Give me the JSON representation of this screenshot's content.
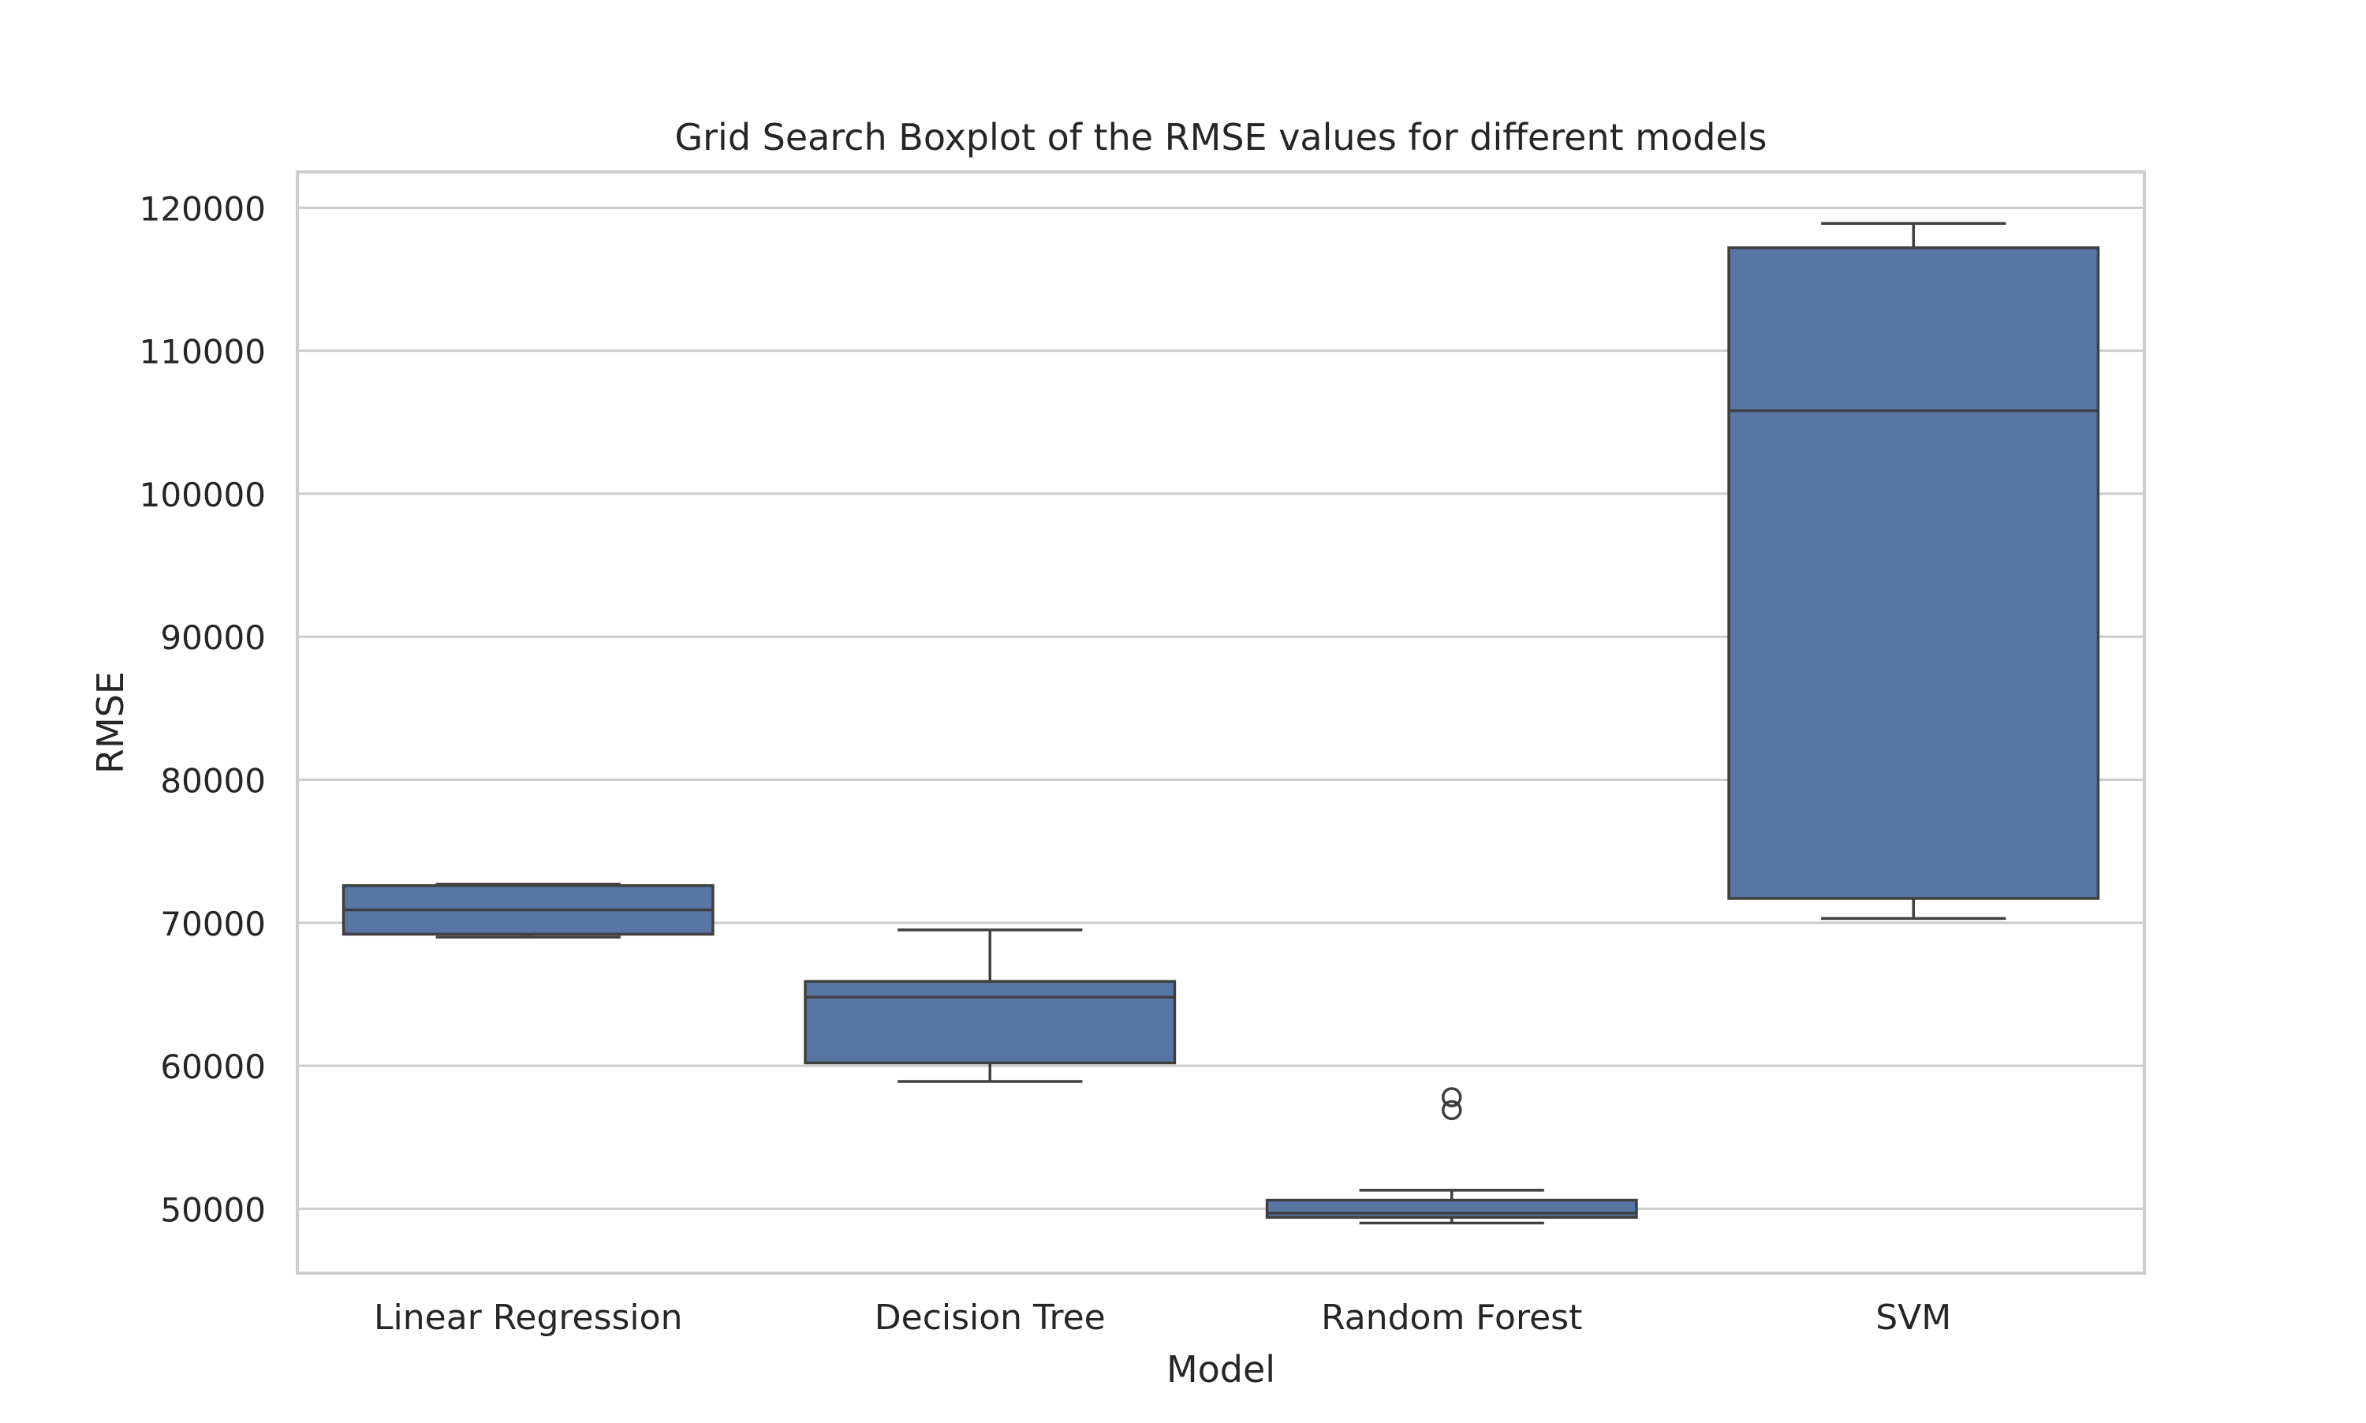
{
  "chart_data": {
    "type": "boxplot",
    "title": "Grid Search Boxplot of the RMSE values for different models",
    "xlabel": "Model",
    "ylabel": "RMSE",
    "ylim": [
      45500,
      122500
    ],
    "yticks": [
      50000,
      60000,
      70000,
      80000,
      90000,
      100000,
      110000,
      120000
    ],
    "ytick_labels": [
      "50000",
      "60000",
      "70000",
      "80000",
      "90000",
      "100000",
      "110000",
      "120000"
    ],
    "grid": true,
    "categories": [
      "Linear Regression",
      "Decision Tree",
      "Random Forest",
      "SVM"
    ],
    "boxes": [
      {
        "model": "Linear Regression",
        "whisker_low": 69000,
        "q1": 69200,
        "median": 70900,
        "q3": 72600,
        "whisker_high": 72700,
        "outliers": []
      },
      {
        "model": "Decision Tree",
        "whisker_low": 58900,
        "q1": 60200,
        "median": 64800,
        "q3": 65900,
        "whisker_high": 69500,
        "outliers": []
      },
      {
        "model": "Random Forest",
        "whisker_low": 49000,
        "q1": 49400,
        "median": 49700,
        "q3": 50600,
        "whisker_high": 51300,
        "outliers": [
          56900,
          57800
        ]
      },
      {
        "model": "SVM",
        "whisker_low": 70300,
        "q1": 71700,
        "median": 105800,
        "q3": 117200,
        "whisker_high": 118900,
        "outliers": []
      }
    ],
    "colors": {
      "box_fill": "#5975a4",
      "line": "#3f3f3f",
      "grid": "#cccccc",
      "frame": "#cccccc",
      "text": "#262626"
    }
  }
}
